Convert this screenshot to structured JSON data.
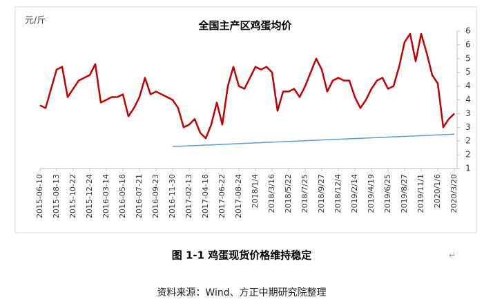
{
  "chart_data": {
    "type": "line",
    "title": "全国主产区鸡蛋均价",
    "unit_label": "元/斤",
    "color": "#c00000",
    "categories": [
      "2015-06-10",
      null,
      null,
      "2015-08-13",
      null,
      null,
      "2015-10-22",
      null,
      null,
      "2015-12-24",
      null,
      null,
      "2016-03-14",
      null,
      null,
      "2016-05-18",
      null,
      null,
      "2016-07-21",
      null,
      null,
      "2016-09-23",
      null,
      null,
      "2016-11-30",
      null,
      null,
      "2017-02-13",
      null,
      null,
      "2017-04-18",
      null,
      null,
      "2017-06-22",
      null,
      null,
      "2017-08-24",
      null,
      null,
      "2018/1/4",
      null,
      null,
      "2018/3/16",
      null,
      null,
      "2018/5/22",
      null,
      null,
      "2018/7/25",
      null,
      null,
      "2018/9/27",
      null,
      null,
      "2018/12/4",
      null,
      null,
      "2019/2/14",
      null,
      null,
      "2019/4/19",
      null,
      null,
      "2019/6/25",
      null,
      null,
      "2019/8/27",
      null,
      null,
      "2019/11/1",
      null,
      null,
      "2020/1/6",
      null,
      null,
      "2020/3/20"
    ],
    "values": [
      3.3,
      3.2,
      3.9,
      4.6,
      4.7,
      3.6,
      3.9,
      4.2,
      4.3,
      4.4,
      4.8,
      3.4,
      3.5,
      3.6,
      3.6,
      3.7,
      2.9,
      3.2,
      3.6,
      4.3,
      3.7,
      3.8,
      3.7,
      3.6,
      3.5,
      3.2,
      2.5,
      2.6,
      2.8,
      2.3,
      2.1,
      2.6,
      3.4,
      2.6,
      4.0,
      4.7,
      4.0,
      3.9,
      4.3,
      4.7,
      4.6,
      4.7,
      4.5,
      3.1,
      3.8,
      3.8,
      3.9,
      3.6,
      4.0,
      4.5,
      5.0,
      4.6,
      3.8,
      4.2,
      4.3,
      4.2,
      4.2,
      3.6,
      3.2,
      3.5,
      3.9,
      4.2,
      4.3,
      3.9,
      4.0,
      4.7,
      5.6,
      5.9,
      4.9,
      5.9,
      5.2,
      4.4,
      4.1,
      2.5,
      2.8,
      3.0
    ],
    "trend_line": {
      "color": "#5b9bd5",
      "start_index": 24,
      "end_index": 75,
      "values": [
        1.8,
        2.25
      ]
    },
    "ylim": [
      1,
      6
    ],
    "yticks": [
      {
        "value": 6,
        "label": "6"
      },
      {
        "value": 5.5,
        "label": "6"
      },
      {
        "value": 5,
        "label": "5"
      },
      {
        "value": 4.5,
        "label": "5"
      },
      {
        "value": 4,
        "label": "4"
      },
      {
        "value": 3.5,
        "label": "4"
      },
      {
        "value": 3,
        "label": "3"
      },
      {
        "value": 2.5,
        "label": "3"
      },
      {
        "value": 2,
        "label": "2"
      },
      {
        "value": 1.5,
        "label": "2"
      },
      {
        "value": 1,
        "label": "1"
      }
    ],
    "y_axis_side": "right"
  },
  "caption": "图 1-1 鸡蛋现货价格维持稳定",
  "source": "资料来源：Wind、方正中期研究院整理"
}
